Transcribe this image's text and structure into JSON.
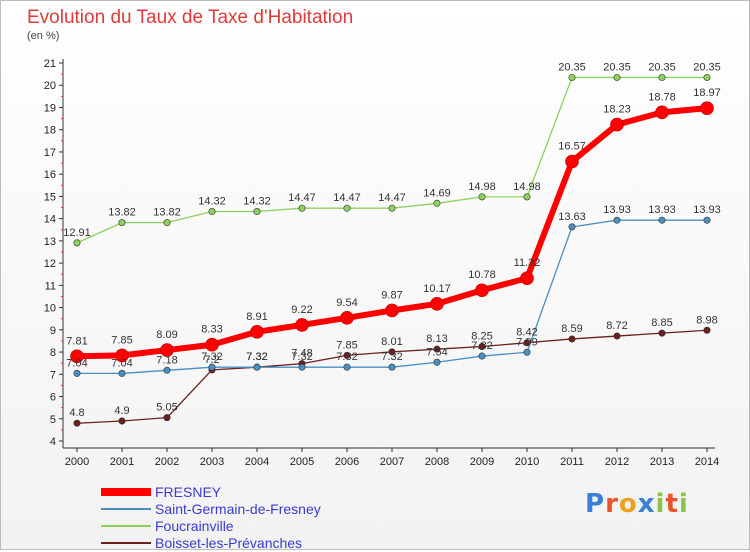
{
  "chart_data": {
    "type": "line",
    "title": "Evolution du Taux de Taxe d'Habitation",
    "subtitle": "(en %)",
    "x": [
      "2000",
      "2001",
      "2002",
      "2003",
      "2004",
      "2005",
      "2006",
      "2007",
      "2008",
      "2009",
      "2010",
      "2011",
      "2012",
      "2013",
      "2014"
    ],
    "ylim": [
      4,
      21
    ],
    "yticks": [
      "4",
      "5",
      "6",
      "7",
      "8",
      "9",
      "10",
      "11",
      "12",
      "13",
      "14",
      "15",
      "16",
      "17",
      "18",
      "19",
      "20",
      "21"
    ],
    "grid": false,
    "legend_position": "bottom-left",
    "series": [
      {
        "name": "FRESNEY",
        "color": "#ff0000",
        "values": [
          7.81,
          7.85,
          8.09,
          8.33,
          8.91,
          9.22,
          9.54,
          9.87,
          10.17,
          10.78,
          11.32,
          16.57,
          18.23,
          18.78,
          18.97
        ],
        "labels": [
          "7.81",
          "7.85",
          "8.09",
          "8.33",
          "8.91",
          "9.22",
          "9.54",
          "9.87",
          "10.17",
          "10.78",
          "11.32",
          "16.57",
          "18.23",
          "18.78",
          "18.97"
        ]
      },
      {
        "name": "Saint-Germain-de-Fresney",
        "color": "#4a8ec2",
        "values": [
          7.04,
          7.04,
          7.18,
          7.32,
          7.32,
          7.32,
          7.32,
          7.32,
          7.54,
          7.82,
          7.99,
          13.63,
          13.93,
          13.93,
          13.93
        ],
        "labels": [
          "7.04",
          "7.04",
          "7.18",
          "7.32",
          "7.32",
          "7.32",
          "7.32",
          "7.32",
          "7.54",
          "7.82",
          "7.99",
          "13.63",
          "13.93",
          "13.93",
          "13.93"
        ]
      },
      {
        "name": "Foucrainville",
        "color": "#8fd15e",
        "values": [
          12.91,
          13.82,
          13.82,
          14.32,
          14.32,
          14.47,
          14.47,
          14.47,
          14.69,
          14.98,
          14.98,
          20.35,
          20.35,
          20.35,
          20.35
        ],
        "labels": [
          "12.91",
          "13.82",
          "13.82",
          "14.32",
          "14.32",
          "14.47",
          "14.47",
          "14.47",
          "14.69",
          "14.98",
          "14.98",
          "20.35",
          "20.35",
          "20.35",
          "20.35"
        ]
      },
      {
        "name": "Boisset-les-Prévanches",
        "color": "#6b1f1f",
        "values": [
          4.8,
          4.9,
          5.05,
          7.2,
          7.32,
          7.48,
          7.85,
          8.01,
          8.13,
          8.25,
          8.42,
          8.59,
          8.72,
          8.85,
          8.98
        ],
        "labels": [
          "4.8",
          "4.9",
          "5.05",
          "7.2",
          "7.32",
          "7.48",
          "7.85",
          "8.01",
          "8.13",
          "8.25",
          "8.42",
          "8.59",
          "8.72",
          "8.85",
          "8.98"
        ]
      }
    ]
  },
  "brand": {
    "letters": [
      {
        "ch": "P",
        "color": "#3b7fd4"
      },
      {
        "ch": "r",
        "color": "#e8552a"
      },
      {
        "ch": "o",
        "color": "#f0a020"
      },
      {
        "ch": "x",
        "color": "#3b7fd4"
      },
      {
        "ch": "i",
        "color": "#8bc34a"
      },
      {
        "ch": "t",
        "color": "#e8552a"
      },
      {
        "ch": "i",
        "color": "#8bc34a"
      }
    ]
  }
}
